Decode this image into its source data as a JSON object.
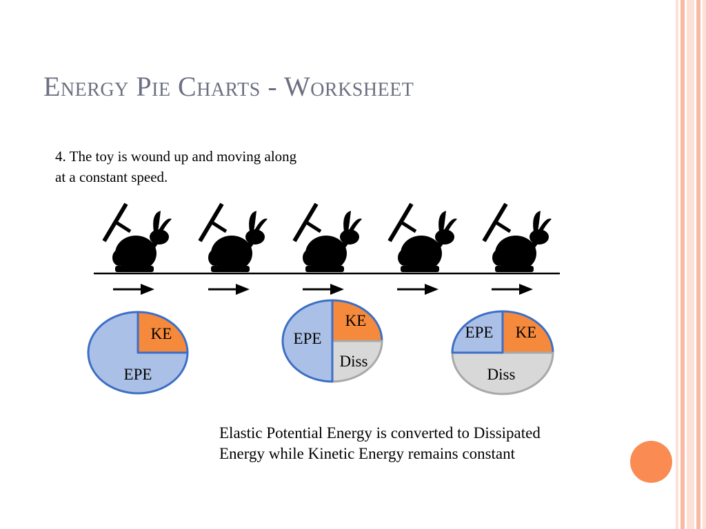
{
  "slide": {
    "title": "Energy Pie Charts - Worksheet",
    "question_line1": "4.  The toy is wound up and moving along",
    "question_line2": "at a constant speed.",
    "caption": "Elastic Potential Energy is converted to Dissipated Energy while Kinetic Energy remains constant"
  },
  "colors": {
    "title": "#6b6f80",
    "stripe_light": "#fde0d6",
    "stripe_mid": "#f9b9a2",
    "accent_dot": "#fa8b52",
    "epe_fill": "#abc0e6",
    "epe_stroke": "#3c6ec6",
    "ke_fill": "#f68a3c",
    "diss_fill": "#d8d8d8",
    "diss_stroke": "#a8a8a8"
  },
  "icons": {
    "toy": "wind-up-rabbit-icon",
    "motion": "right-arrow-icon"
  },
  "chart_data": [
    {
      "type": "pie",
      "slices": [
        {
          "label": "KE",
          "value": 25
        },
        {
          "label": "EPE",
          "value": 75
        }
      ]
    },
    {
      "type": "pie",
      "slices": [
        {
          "label": "KE",
          "value": 25
        },
        {
          "label": "Diss",
          "value": 25
        },
        {
          "label": "EPE",
          "value": 50
        }
      ]
    },
    {
      "type": "pie",
      "slices": [
        {
          "label": "KE",
          "value": 25
        },
        {
          "label": "Diss",
          "value": 50
        },
        {
          "label": "EPE",
          "value": 25
        }
      ]
    }
  ]
}
